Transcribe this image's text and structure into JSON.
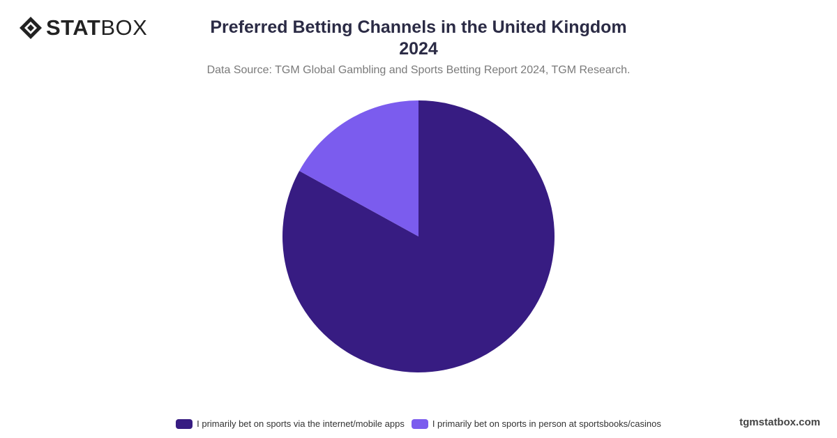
{
  "logo": {
    "bold": "STAT",
    "light": "BOX"
  },
  "footer": "tgmstatbox.com",
  "chart_data": {
    "type": "pie",
    "title": "Preferred Betting Channels in the United Kingdom\n2024",
    "subtitle": "Data Source: TGM Global Gambling and Sports Betting Report 2024, TGM Research.",
    "categories": [
      "I primarily bet on sports via the internet/mobile apps",
      "I primarily bet on sports in person at sportsbooks/casinos"
    ],
    "values": [
      83,
      17
    ],
    "colors": [
      "#371c82",
      "#7b5cee"
    ],
    "legend": "bottom"
  }
}
